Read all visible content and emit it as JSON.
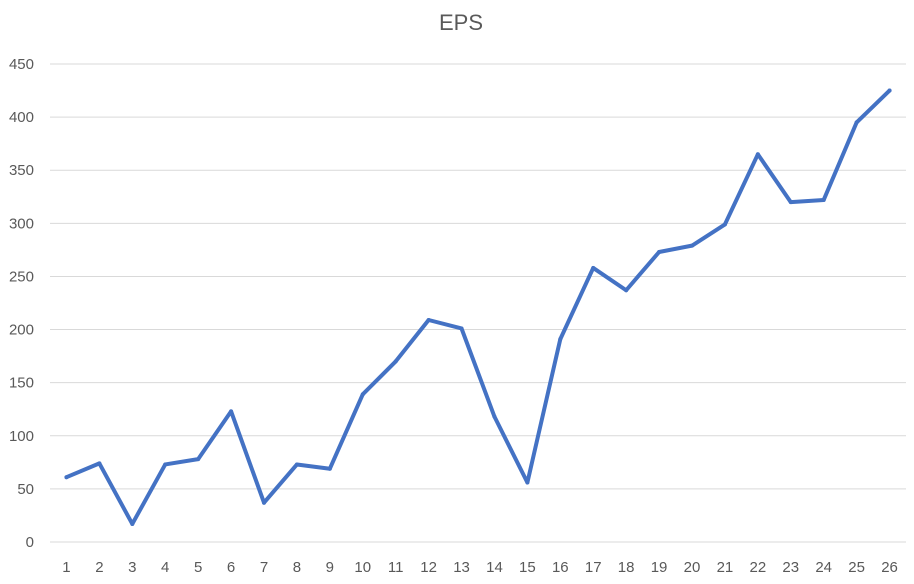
{
  "chart_data": {
    "type": "line",
    "title": "EPS",
    "xlabel": "",
    "ylabel": "",
    "categories": [
      "1",
      "2",
      "3",
      "4",
      "5",
      "6",
      "7",
      "8",
      "9",
      "10",
      "11",
      "12",
      "13",
      "14",
      "15",
      "16",
      "17",
      "18",
      "19",
      "20",
      "21",
      "22",
      "23",
      "24",
      "25",
      "26"
    ],
    "series": [
      {
        "values": [
          61,
          74,
          17,
          73,
          78,
          123,
          37,
          73,
          69,
          139,
          170,
          209,
          201,
          118,
          56,
          191,
          258,
          237,
          273,
          279,
          299,
          365,
          320,
          322,
          395,
          425
        ],
        "color": "#4472C4"
      }
    ],
    "ylim": [
      0,
      450
    ],
    "yticks": [
      "0",
      "50",
      "100",
      "150",
      "200",
      "250",
      "300",
      "350",
      "400",
      "450"
    ],
    "grid": true,
    "legend": "none"
  }
}
